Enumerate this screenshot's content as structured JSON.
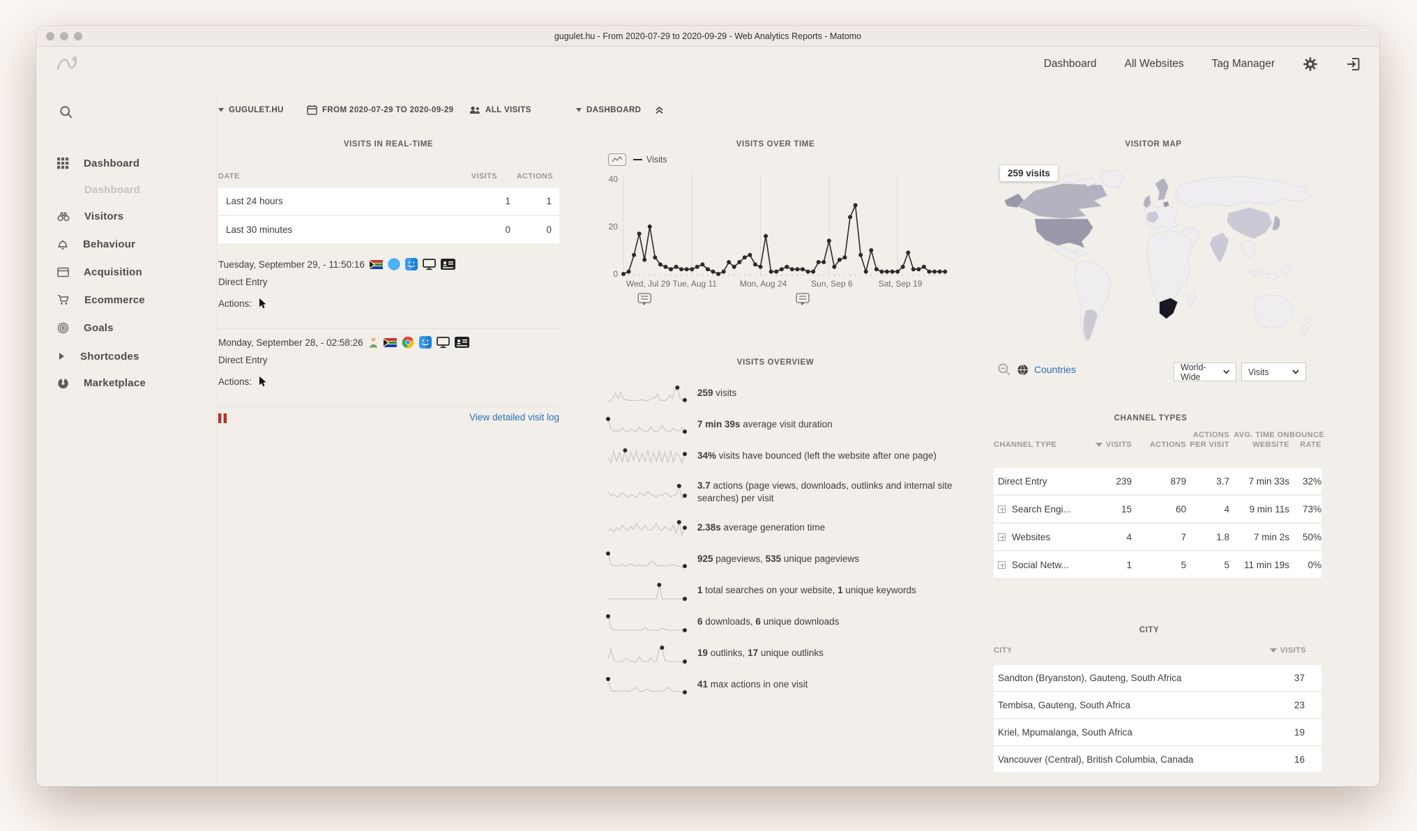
{
  "window": {
    "title": "gugulet.hu - From 2020-07-29 to 2020-09-29 - Web Analytics Reports - Matomo"
  },
  "header": {
    "nav": [
      {
        "label": "Dashboard"
      },
      {
        "label": "All Websites"
      },
      {
        "label": "Tag Manager"
      }
    ]
  },
  "sidebar": {
    "items": [
      {
        "label": "Dashboard",
        "icon": "dashboard-grid",
        "sub": false
      },
      {
        "label": "Dashboard",
        "icon": "",
        "sub": true
      },
      {
        "label": "Visitors",
        "icon": "binoculars",
        "sub": false
      },
      {
        "label": "Behaviour",
        "icon": "bell",
        "sub": false
      },
      {
        "label": "Acquisition",
        "icon": "browser-window",
        "sub": false
      },
      {
        "label": "Ecommerce",
        "icon": "cart",
        "sub": false
      },
      {
        "label": "Goals",
        "icon": "target",
        "sub": false
      },
      {
        "label": "Shortcodes",
        "icon": "triangle-right",
        "sub": false
      },
      {
        "label": "Marketplace",
        "icon": "marketplace",
        "sub": false
      }
    ]
  },
  "selector": {
    "site": "GUGULET.HU",
    "date_range": "FROM 2020-07-29 TO 2020-09-29",
    "segment": "ALL VISITS",
    "dashboard": "DASHBOARD"
  },
  "realtime": {
    "title": "VISITS IN REAL-TIME",
    "columns": [
      "DATE",
      "VISITS",
      "ACTIONS"
    ],
    "rows": [
      {
        "date": "Last 24 hours",
        "visits": "1",
        "actions": "1"
      },
      {
        "date": "Last 30 minutes",
        "visits": "0",
        "actions": "0"
      }
    ],
    "entries": [
      {
        "datetime": "Tuesday, September 29, - 11:50:16",
        "icons": [
          "za-flag",
          "safari",
          "macos",
          "screen",
          "id-card"
        ],
        "referrer": "Direct Entry",
        "actions_label": "Actions:"
      },
      {
        "datetime": "Monday, September 28, - 02:58:26",
        "icons": [
          "returning-visitor",
          "za-flag",
          "chrome",
          "macos",
          "screen",
          "id-card"
        ],
        "referrer": "Direct Entry",
        "actions_label": "Actions:"
      }
    ],
    "view_log_label": "View detailed visit log"
  },
  "chart_data": {
    "type": "line",
    "title": "VISITS OVER TIME",
    "x_daily_from": "2020-07-29",
    "series": [
      {
        "name": "Visits",
        "values": [
          0,
          1,
          8,
          17,
          6,
          20,
          7,
          4,
          3,
          2,
          3,
          2,
          2,
          2,
          3,
          4,
          2,
          1,
          0,
          1,
          5,
          3,
          5,
          7,
          8,
          4,
          3,
          16,
          1,
          1,
          2,
          3,
          2,
          2,
          2,
          1,
          1,
          5,
          5,
          14,
          3,
          6,
          7,
          24,
          29,
          8,
          1,
          10,
          2,
          1,
          1,
          1,
          1,
          3,
          9,
          2,
          2,
          3,
          1,
          1,
          1,
          1
        ]
      }
    ],
    "tick_labels": [
      "Wed, Jul 29",
      "Tue, Aug 11",
      "Mon, Aug 24",
      "Sun, Sep 6",
      "Sat, Sep 19"
    ],
    "tick_indices": [
      0,
      13,
      26,
      39,
      52
    ],
    "yticks": [
      0,
      20,
      40
    ],
    "ylim": [
      0,
      45
    ],
    "grid": "vertical",
    "legend_position": "top-left",
    "annotation_indices": [
      4,
      34
    ]
  },
  "overview": {
    "title": "VISITS OVERVIEW",
    "rows": [
      {
        "spark": [
          0,
          1,
          8,
          17,
          6,
          20,
          7,
          4,
          3,
          2,
          3,
          2,
          2,
          3,
          4,
          2,
          1,
          5,
          7,
          8,
          16,
          2,
          3,
          2,
          5,
          14,
          6,
          24,
          29,
          8,
          2,
          3
        ],
        "segments": [
          {
            "t": "259",
            "b": true
          },
          {
            "t": " visits"
          }
        ]
      },
      {
        "spark": [
          22,
          6,
          3,
          4,
          2,
          8,
          3,
          2,
          6,
          3,
          2,
          9,
          4,
          3,
          2,
          10,
          3,
          2,
          4,
          12,
          5,
          3,
          2,
          8,
          3,
          4,
          9,
          2
        ],
        "segments": [
          {
            "t": "7 min 39s",
            "b": true
          },
          {
            "t": " average visit duration"
          }
        ]
      },
      {
        "spark": [
          10,
          2,
          18,
          4,
          16,
          3,
          19,
          2,
          17,
          5,
          18,
          3,
          15,
          4,
          19,
          2,
          16,
          4,
          18,
          3,
          17,
          2,
          19,
          3,
          16,
          12,
          2,
          14
        ],
        "segments": [
          {
            "t": "34%",
            "b": true
          },
          {
            "t": " visits have bounced (left the website after one page)"
          }
        ]
      },
      {
        "spark": [
          6,
          3,
          4,
          2,
          3,
          5,
          3,
          2,
          4,
          3,
          2,
          5,
          4,
          3,
          6,
          4,
          3,
          2,
          4,
          3,
          5,
          4,
          2,
          3,
          4,
          10,
          1,
          3
        ],
        "segments": [
          {
            "t": "3.7",
            "b": true
          },
          {
            "t": " actions (page views, downloads, outlinks and internal site searches) per visit"
          }
        ]
      },
      {
        "spark": [
          4,
          5,
          3,
          6,
          4,
          8,
          5,
          4,
          7,
          5,
          9,
          6,
          4,
          8,
          5,
          4,
          6,
          9,
          5,
          4,
          7,
          5,
          4,
          8,
          2,
          10,
          1,
          6
        ],
        "segments": [
          {
            "t": "2.38s",
            "b": true
          },
          {
            "t": " average generation time"
          }
        ]
      },
      {
        "spark": [
          20,
          4,
          3,
          2,
          3,
          4,
          2,
          3,
          5,
          3,
          2,
          4,
          3,
          2,
          3,
          8,
          9,
          3,
          2,
          3,
          2,
          3,
          3,
          4,
          2,
          2,
          1,
          2
        ],
        "segments": [
          {
            "t": "925",
            "b": true
          },
          {
            "t": " pageviews, "
          },
          {
            "t": "535",
            "b": true
          },
          {
            "t": " unique pageviews"
          }
        ]
      },
      {
        "spark": [
          0,
          0,
          0,
          0,
          0,
          0,
          0,
          0,
          0,
          0,
          0,
          0,
          0,
          0,
          0,
          0,
          0,
          0,
          16,
          0,
          0,
          0,
          0,
          0,
          0,
          0,
          0,
          0
        ],
        "segments": [
          {
            "t": "1",
            "b": true
          },
          {
            "t": " total searches on your website, "
          },
          {
            "t": "1",
            "b": true
          },
          {
            "t": " unique keywords"
          }
        ]
      },
      {
        "spark": [
          14,
          2,
          0,
          0,
          0,
          0,
          0,
          0,
          0,
          0,
          0,
          0,
          0,
          3,
          0,
          0,
          0,
          0,
          0,
          2,
          1,
          0,
          0,
          0,
          0,
          0,
          0,
          0
        ],
        "segments": [
          {
            "t": "6",
            "b": true
          },
          {
            "t": " downloads, "
          },
          {
            "t": "6",
            "b": true
          },
          {
            "t": " unique downloads"
          }
        ]
      },
      {
        "spark": [
          2,
          10,
          1,
          0,
          0,
          0,
          2,
          2,
          0,
          0,
          0,
          4,
          0,
          0,
          0,
          3,
          0,
          0,
          10,
          11,
          1,
          0,
          0,
          0,
          0,
          0,
          0,
          0
        ],
        "segments": [
          {
            "t": "19",
            "b": true
          },
          {
            "t": " outlinks, "
          },
          {
            "t": "17",
            "b": true
          },
          {
            "t": " unique outlinks"
          }
        ]
      },
      {
        "spark": [
          20,
          4,
          2,
          3,
          2,
          3,
          4,
          2,
          3,
          5,
          8,
          3,
          2,
          4,
          6,
          3,
          2,
          3,
          2,
          3,
          4,
          8,
          5,
          2,
          3,
          2,
          1,
          1
        ],
        "segments": [
          {
            "t": "41",
            "b": true
          },
          {
            "t": " max actions in one visit"
          }
        ]
      }
    ]
  },
  "map": {
    "title": "VISITOR MAP",
    "tooltip": "259 visits",
    "countries_label": "Countries",
    "region_select": "World-Wide",
    "metric_select": "Visits",
    "palette": {
      "base": "#efedef",
      "low": "#ccc9d6",
      "medium": "#b4b1c1",
      "high": "#9a97a9",
      "max": "#191721"
    },
    "highlights": [
      {
        "country": "south-africa",
        "level": "max"
      },
      {
        "country": "usa",
        "level": "high"
      },
      {
        "country": "alaska",
        "level": "high"
      },
      {
        "country": "canada",
        "level": "medium"
      },
      {
        "country": "uk",
        "level": "medium"
      },
      {
        "country": "nordic",
        "level": "medium"
      },
      {
        "country": "denmark",
        "level": "high"
      },
      {
        "country": "france",
        "level": "low"
      },
      {
        "country": "china",
        "level": "low"
      },
      {
        "country": "india",
        "level": "low"
      },
      {
        "country": "japan",
        "level": "medium"
      },
      {
        "country": "argentina",
        "level": "low"
      }
    ]
  },
  "channel": {
    "title": "CHANNEL TYPES",
    "columns": [
      "CHANNEL TYPE",
      "VISITS",
      "ACTIONS",
      "ACTIONS PER VISIT",
      "AVG. TIME ON WEBSITE",
      "BOUNCE RATE"
    ],
    "rows": [
      {
        "label": "Direct Entry",
        "expandable": false,
        "visits": "239",
        "actions": "879",
        "apv": "3.7",
        "avg_time": "7 min 33s",
        "bounce": "32%"
      },
      {
        "label": "Search Engi...",
        "expandable": true,
        "visits": "15",
        "actions": "60",
        "apv": "4",
        "avg_time": "9 min 11s",
        "bounce": "73%"
      },
      {
        "label": "Websites",
        "expandable": true,
        "visits": "4",
        "actions": "7",
        "apv": "1.8",
        "avg_time": "7 min 2s",
        "bounce": "50%"
      },
      {
        "label": "Social Netw...",
        "expandable": true,
        "visits": "1",
        "actions": "5",
        "apv": "5",
        "avg_time": "11 min 19s",
        "bounce": "0%"
      }
    ]
  },
  "city": {
    "title": "CITY",
    "columns": [
      "CITY",
      "VISITS"
    ],
    "rows": [
      {
        "label": "Sandton (Bryanston), Gauteng, South Africa",
        "visits": "37"
      },
      {
        "label": "Tembisa, Gauteng, South Africa",
        "visits": "23"
      },
      {
        "label": "Kriel, Mpumalanga, South Africa",
        "visits": "19"
      },
      {
        "label": "Vancouver (Central), British Columbia, Canada",
        "visits": "16"
      }
    ]
  }
}
